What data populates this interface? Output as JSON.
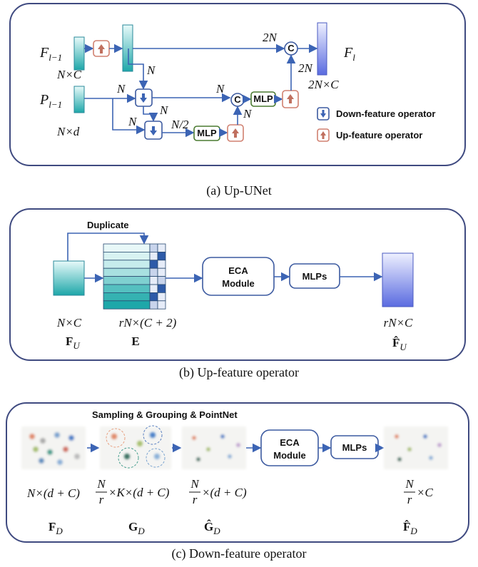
{
  "up_unet": {
    "caption": "(a) Up-UNet",
    "f_prev": {
      "base": "F",
      "sub": "l−1"
    },
    "f_prev_shape": "N×C",
    "p_prev": {
      "base": "P",
      "sub": "l−1"
    },
    "p_prev_shape": "N×d",
    "f_out": {
      "base": "F",
      "sub": "l"
    },
    "f_out_shape": "2N×C",
    "edge_labels": [
      "2N",
      "N",
      "N",
      "N",
      "N",
      "N",
      "N/2",
      "N",
      "2N"
    ],
    "concat": "C",
    "mlp": "MLP",
    "legend": [
      "Down-feature operator",
      "Up-feature operator"
    ]
  },
  "up_feature": {
    "caption": "(b) Up-feature operator",
    "duplicate": "Duplicate",
    "input_shape": "N×C",
    "input": {
      "base": "F",
      "sub": "U"
    },
    "expanded_shape": "rN×(C + 2)",
    "expanded": "E",
    "eca": [
      "ECA",
      "Module"
    ],
    "mlps": "MLPs",
    "output_shape": "rN×C",
    "output": {
      "base": "F̂",
      "sub": "U"
    }
  },
  "down_feature": {
    "caption": "(c) Down-feature operator",
    "sampling": "Sampling & Grouping & PointNet",
    "input_shape": "N×(d + C)",
    "input": {
      "base": "F",
      "sub": "D"
    },
    "grouped_shape": {
      "num": "N",
      "den": "r",
      "rest": "×K×(d + C)"
    },
    "grouped": {
      "base": "G",
      "sub": "D"
    },
    "pooled_shape": {
      "num": "N",
      "den": "r",
      "rest": "×(d + C)"
    },
    "pooled": {
      "base": "Ĝ",
      "sub": "D"
    },
    "eca": [
      "ECA",
      "Module"
    ],
    "mlps": "MLPs",
    "output_shape": {
      "num": "N",
      "den": "r",
      "rest": "×C"
    },
    "output": {
      "base": "F̂",
      "sub": "D"
    }
  }
}
